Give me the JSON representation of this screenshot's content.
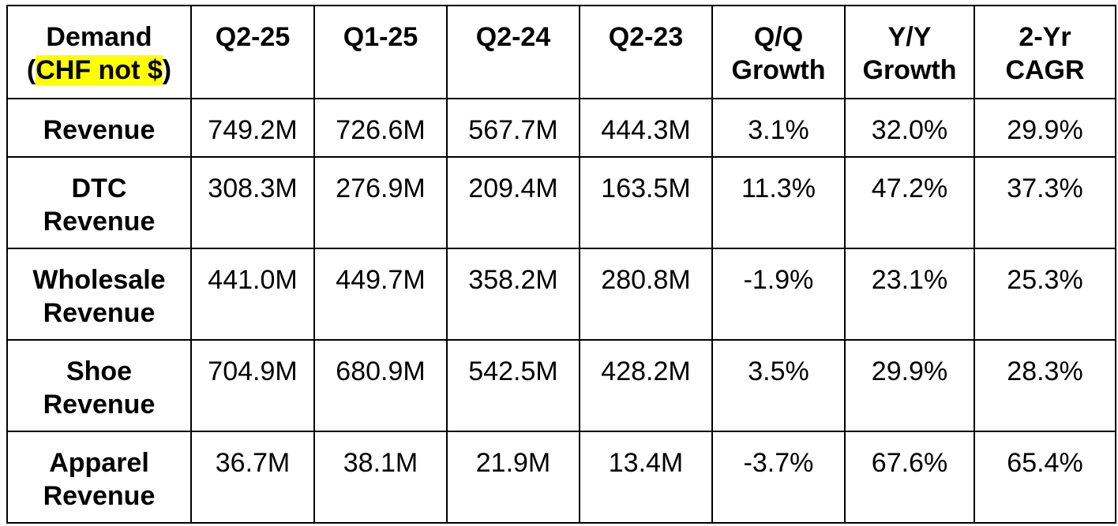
{
  "chart_data": {
    "type": "table",
    "header": {
      "corner_line1": "Demand",
      "corner_line2_pre": "(",
      "corner_line2_highlight": "CHF not $",
      "corner_line2_post": ")",
      "columns": [
        {
          "line1": "Q2-25",
          "line2": ""
        },
        {
          "line1": "Q1-25",
          "line2": ""
        },
        {
          "line1": "Q2-24",
          "line2": ""
        },
        {
          "line1": "Q2-23",
          "line2": ""
        },
        {
          "line1": "Q/Q",
          "line2": "Growth"
        },
        {
          "line1": "Y/Y",
          "line2": "Growth"
        },
        {
          "line1": "2-Yr",
          "line2": "CAGR"
        }
      ]
    },
    "rows": [
      {
        "label_line1": "Revenue",
        "label_line2": "",
        "values": [
          "749.2M",
          "726.6M",
          "567.7M",
          "444.3M",
          "3.1%",
          "32.0%",
          "29.9%"
        ]
      },
      {
        "label_line1": "DTC",
        "label_line2": "Revenue",
        "values": [
          "308.3M",
          "276.9M",
          "209.4M",
          "163.5M",
          "11.3%",
          "47.2%",
          "37.3%"
        ]
      },
      {
        "label_line1": "Wholesale",
        "label_line2": "Revenue",
        "values": [
          "441.0M",
          "449.7M",
          "358.2M",
          "280.8M",
          "-1.9%",
          "23.1%",
          "25.3%"
        ]
      },
      {
        "label_line1": "Shoe",
        "label_line2": "Revenue",
        "values": [
          "704.9M",
          "680.9M",
          "542.5M",
          "428.2M",
          "3.5%",
          "29.9%",
          "28.3%"
        ]
      },
      {
        "label_line1": "Apparel",
        "label_line2": "Revenue",
        "values": [
          "36.7M",
          "38.1M",
          "21.9M",
          "13.4M",
          "-3.7%",
          "67.6%",
          "65.4%"
        ]
      }
    ],
    "highlight_color": "#ffff00"
  }
}
